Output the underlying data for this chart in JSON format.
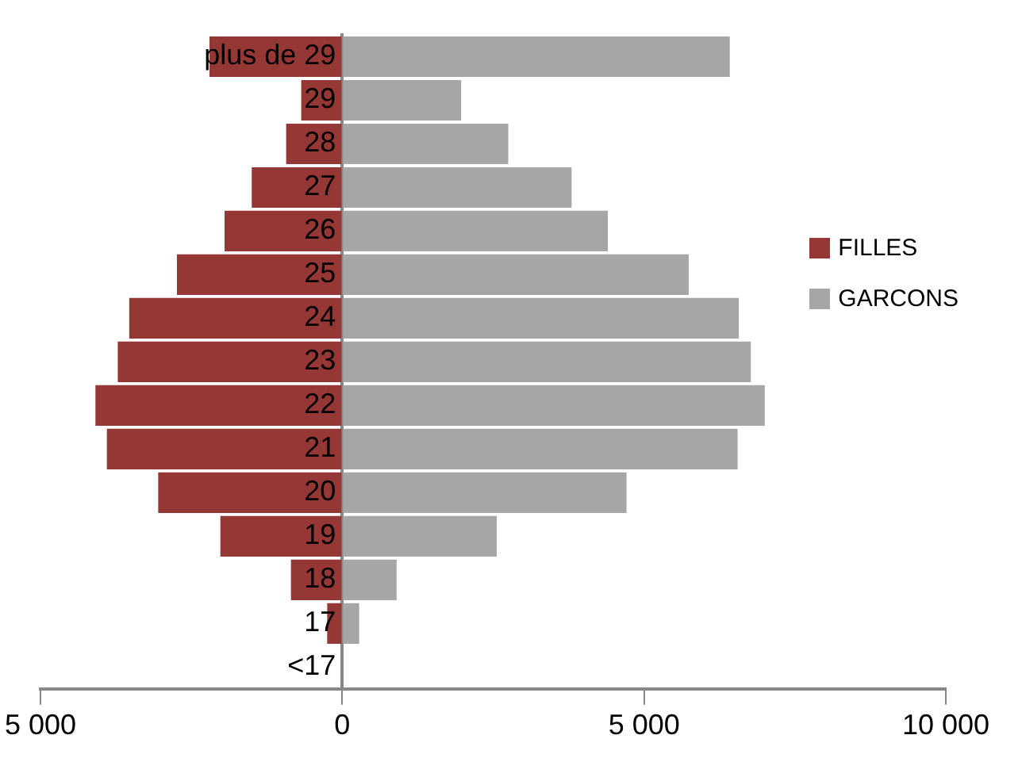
{
  "chart_data": {
    "type": "bar",
    "orientation": "horizontal",
    "stacked": true,
    "categories": [
      "plus de 29",
      "29",
      "28",
      "27",
      "26",
      "25",
      "24",
      "23",
      "22",
      "21",
      "20",
      "19",
      "18",
      "17",
      "<17"
    ],
    "series": [
      {
        "name": "FILLES",
        "color": "#953735",
        "values": [
          -2200,
          -680,
          -930,
          -1500,
          -1950,
          -2740,
          -3530,
          -3720,
          -4090,
          -3900,
          -3050,
          -2020,
          -850,
          -250,
          0
        ]
      },
      {
        "name": "GARCONS",
        "color": "#a6a6a6",
        "values": [
          6420,
          1970,
          2750,
          3800,
          4400,
          5740,
          6570,
          6770,
          7000,
          6550,
          4710,
          2560,
          900,
          280,
          0
        ]
      }
    ],
    "xlim": [
      -5000,
      10000
    ],
    "xticks": [
      {
        "value": -5000,
        "label": "5 000"
      },
      0,
      {
        "value": 5000,
        "label": "5 000"
      },
      {
        "value": 10000,
        "label": "10 000"
      }
    ],
    "grid": false,
    "legend": "right"
  }
}
